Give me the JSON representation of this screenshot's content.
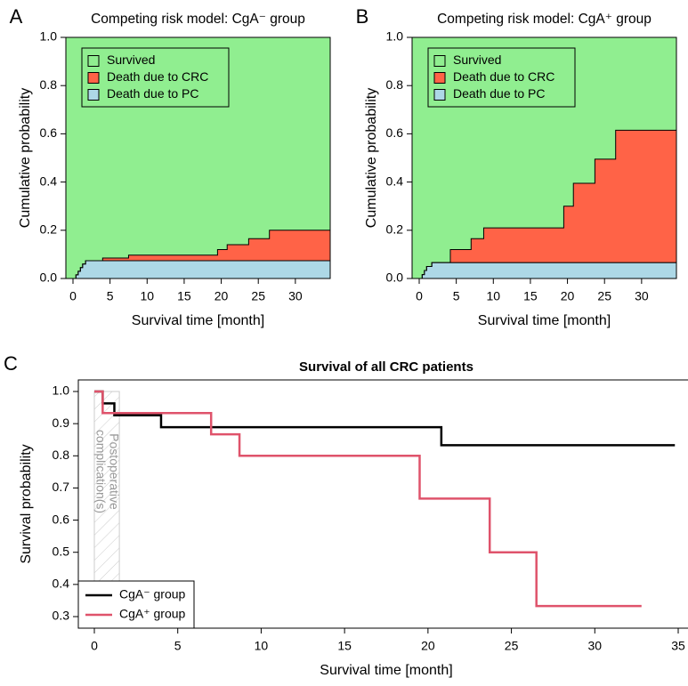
{
  "chart_data": [
    {
      "type": "area",
      "step": "post",
      "panel_label": "A",
      "title": "Competing risk model: CgA⁻ group",
      "x_label": "Survival time [month]",
      "y_label": "Cumulative probability",
      "x": [
        0,
        0.4,
        0.7,
        1.0,
        1.3,
        1.7,
        4.0,
        7.5,
        19.5,
        20.8,
        23.7,
        26.5
      ],
      "series": [
        {
          "name": "Survived",
          "color": "#90ee90"
        },
        {
          "name": "Death due to CRC",
          "color": "#ff6347",
          "values": [
            0,
            0,
            0,
            0,
            0,
            0,
            0.011,
            0.023,
            0.046,
            0.066,
            0.091,
            0.126
          ]
        },
        {
          "name": "Death due to PC",
          "color": "#add8e6",
          "values": [
            0,
            0.015,
            0.03,
            0.045,
            0.06,
            0.074,
            0.074,
            0.074,
            0.074,
            0.074,
            0.074,
            0.074
          ]
        }
      ],
      "xlim": [
        -0.96,
        34.7
      ],
      "xticks": [
        0,
        5,
        10,
        15,
        20,
        25,
        30
      ],
      "ylim": [
        0,
        1
      ],
      "yticks": [
        {
          "value": 0,
          "label": "0.0"
        },
        0.2,
        0.4,
        0.6,
        0.8,
        {
          "value": 1,
          "label": "1.0"
        }
      ],
      "legend": "top-left"
    },
    {
      "type": "area",
      "step": "post",
      "panel_label": "B",
      "title": "Competing risk model: CgA⁺ group",
      "x_label": "Survival time [month]",
      "y_label": "Cumulative probability",
      "x": [
        0,
        0.4,
        0.7,
        1.0,
        1.7,
        4.2,
        7.0,
        8.7,
        19.5,
        20.8,
        23.7,
        26.5
      ],
      "series": [
        {
          "name": "Survived",
          "color": "#90ee90"
        },
        {
          "name": "Death due to CRC",
          "color": "#ff6347",
          "values": [
            0,
            0,
            0,
            0,
            0,
            0.054,
            0.099,
            0.144,
            0.234,
            0.329,
            0.429,
            0.549
          ]
        },
        {
          "name": "Death due to PC",
          "color": "#add8e6",
          "values": [
            0,
            0.016,
            0.033,
            0.05,
            0.066,
            0.066,
            0.066,
            0.066,
            0.066,
            0.066,
            0.066,
            0.066
          ]
        }
      ],
      "xlim": [
        -0.96,
        34.7
      ],
      "xticks": [
        0,
        5,
        10,
        15,
        20,
        25,
        30
      ],
      "ylim": [
        0,
        1
      ],
      "yticks": [
        {
          "value": 0,
          "label": "0.0"
        },
        0.2,
        0.4,
        0.6,
        0.8,
        {
          "value": 1,
          "label": "1.0"
        }
      ],
      "legend": "top-left"
    },
    {
      "type": "line",
      "step": "post",
      "panel_label": "C",
      "title": "Survival of all CRC patients",
      "x_label": "Survival time [month]",
      "y_label": "Survival probability",
      "series": [
        {
          "name": "CgA⁻ group",
          "color": "#000000",
          "x": [
            0,
            0.5,
            1.2,
            4.0,
            20.8,
            34.8
          ],
          "values": [
            1.0,
            0.963,
            0.926,
            0.889,
            0.833,
            0.833
          ]
        },
        {
          "name": "CgA⁺ group",
          "color": "#df536b",
          "x": [
            0,
            0.5,
            7.0,
            8.7,
            19.5,
            23.7,
            26.5,
            32.8
          ],
          "values": [
            1.0,
            0.933,
            0.867,
            0.8,
            0.667,
            0.5,
            0.333,
            0.333
          ]
        }
      ],
      "shaded_range": [
        0,
        1.5
      ],
      "annotation": [
        "Postoperative",
        "complication(s)"
      ],
      "xlim": [
        -0.96,
        35.96
      ],
      "xticks": [
        0,
        5,
        10,
        15,
        20,
        25,
        30,
        35
      ],
      "ylim": [
        0.264,
        1.036
      ],
      "yticks": [
        0.3,
        0.4,
        0.5,
        0.6,
        0.7,
        0.8,
        0.9,
        {
          "value": 1,
          "label": "1.0"
        }
      ],
      "legend": "bottom-left"
    }
  ]
}
